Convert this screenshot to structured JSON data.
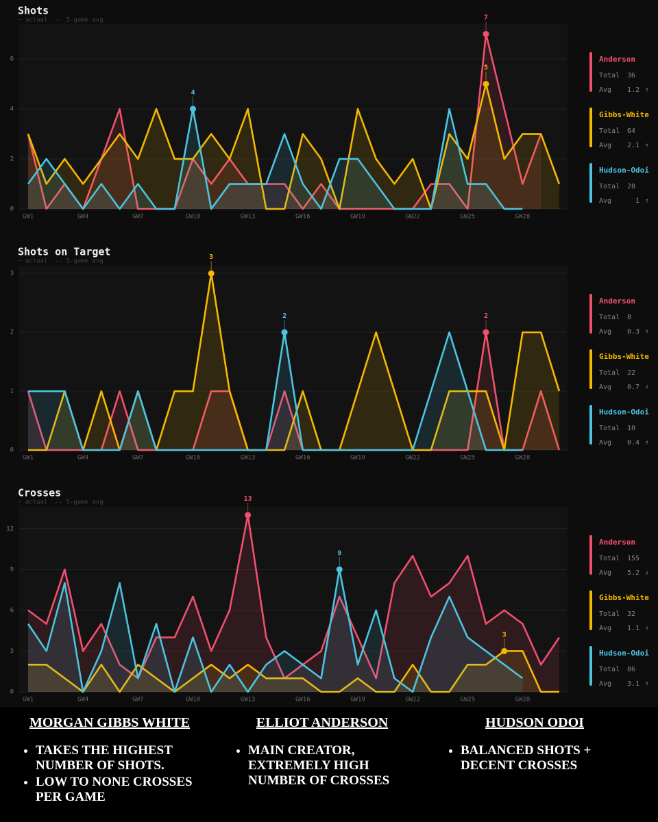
{
  "chart_data": [
    {
      "type": "line",
      "title": "Shots",
      "legend_note": "— actual  -- 5-game avg",
      "total_label": "Total",
      "avg_label": "Avg",
      "categories": [
        "GW1",
        null,
        null,
        "GW4",
        null,
        null,
        "GW7",
        null,
        null,
        "GW10",
        null,
        null,
        "GW13",
        null,
        null,
        "GW16",
        null,
        null,
        "GW19",
        null,
        null,
        "GW22",
        null,
        null,
        "GW25",
        null,
        null,
        "GW28",
        null,
        null
      ],
      "ylim": [
        0,
        7.4
      ],
      "yticks": [
        0,
        2,
        4,
        6
      ],
      "grid": true,
      "series": [
        {
          "name": "Anderson",
          "color": "#f0506e",
          "total": 36,
          "avg": 1.2,
          "trend": "↑",
          "values": [
            3,
            0,
            1,
            0,
            2,
            4,
            0,
            0,
            0,
            2,
            1,
            2,
            1,
            1,
            1,
            0,
            1,
            0,
            0,
            0,
            0,
            0,
            1,
            1,
            0,
            7,
            4,
            1,
            3,
            null
          ]
        },
        {
          "name": "Gibbs-White",
          "color": "#f5b800",
          "total": 64,
          "avg": 2.1,
          "trend": "↑",
          "values": [
            3,
            1,
            2,
            1,
            2,
            3,
            2,
            4,
            2,
            2,
            3,
            2,
            4,
            0,
            0,
            3,
            2,
            0,
            4,
            2,
            1,
            2,
            0,
            3,
            2,
            5,
            2,
            3,
            3,
            1
          ]
        },
        {
          "name": "Hudson-Odoi",
          "color": "#4cc3e0",
          "total": 28,
          "avg": 1.0,
          "trend": "↑",
          "values": [
            1,
            2,
            1,
            0,
            1,
            0,
            1,
            0,
            0,
            4,
            0,
            1,
            1,
            1,
            3,
            1,
            0,
            2,
            2,
            1,
            0,
            0,
            0,
            4,
            1,
            1,
            0,
            0,
            null,
            null
          ]
        }
      ]
    },
    {
      "type": "line",
      "title": "Shots on Target",
      "legend_note": "— actual  -- 5-game avg",
      "total_label": "Total",
      "avg_label": "Avg",
      "categories": [
        "GW1",
        null,
        null,
        "GW4",
        null,
        null,
        "GW7",
        null,
        null,
        "GW10",
        null,
        null,
        "GW13",
        null,
        null,
        "GW16",
        null,
        null,
        "GW19",
        null,
        null,
        "GW22",
        null,
        null,
        "GW25",
        null,
        null,
        "GW28",
        null,
        null
      ],
      "ylim": [
        0,
        3.13
      ],
      "yticks": [
        0,
        1,
        2,
        3
      ],
      "grid": true,
      "series": [
        {
          "name": "Anderson",
          "color": "#f0506e",
          "total": 8,
          "avg": 0.3,
          "trend": "↑",
          "values": [
            1,
            0,
            0,
            0,
            0,
            1,
            0,
            0,
            0,
            0,
            1,
            1,
            0,
            0,
            1,
            0,
            0,
            0,
            0,
            0,
            0,
            0,
            0,
            0,
            0,
            2,
            0,
            0,
            1,
            0
          ]
        },
        {
          "name": "Gibbs-White",
          "color": "#f5b800",
          "total": 22,
          "avg": 0.7,
          "trend": "↑",
          "values": [
            0,
            0,
            1,
            0,
            1,
            0,
            1,
            0,
            1,
            1,
            3,
            1,
            0,
            0,
            0,
            1,
            0,
            0,
            1,
            2,
            1,
            0,
            0,
            1,
            1,
            1,
            0,
            2,
            2,
            1
          ]
        },
        {
          "name": "Hudson-Odoi",
          "color": "#4cc3e0",
          "total": 10,
          "avg": 0.4,
          "trend": "↑",
          "values": [
            1,
            1,
            1,
            0,
            0,
            0,
            1,
            0,
            0,
            0,
            0,
            0,
            0,
            0,
            2,
            0,
            0,
            0,
            0,
            0,
            0,
            0,
            1,
            2,
            1,
            0,
            0,
            0,
            null,
            null
          ]
        }
      ]
    },
    {
      "type": "line",
      "title": "Crosses",
      "legend_note": "— actual  -- 5-game avg",
      "total_label": "Total",
      "avg_label": "Avg",
      "categories": [
        "GW1",
        null,
        null,
        "GW4",
        null,
        null,
        "GW7",
        null,
        null,
        "GW10",
        null,
        null,
        "GW13",
        null,
        null,
        "GW16",
        null,
        null,
        "GW19",
        null,
        null,
        "GW22",
        null,
        null,
        "GW25",
        null,
        null,
        "GW28",
        null,
        null
      ],
      "ylim": [
        0,
        13.6
      ],
      "yticks": [
        0,
        3,
        6,
        9,
        12
      ],
      "grid": true,
      "series": [
        {
          "name": "Anderson",
          "color": "#f0506e",
          "total": 155,
          "avg": 5.2,
          "trend": "↓",
          "values": [
            6,
            5,
            9,
            3,
            5,
            2,
            1,
            4,
            4,
            7,
            3,
            6,
            13,
            4,
            1,
            2,
            3,
            7,
            4,
            1,
            8,
            10,
            7,
            8,
            10,
            5,
            6,
            5,
            2,
            4
          ]
        },
        {
          "name": "Gibbs-White",
          "color": "#f5b800",
          "total": 32,
          "avg": 1.1,
          "trend": "↑",
          "values": [
            2,
            2,
            1,
            0,
            2,
            0,
            2,
            1,
            0,
            1,
            2,
            1,
            2,
            1,
            1,
            1,
            0,
            0,
            1,
            0,
            0,
            2,
            0,
            0,
            2,
            2,
            3,
            3,
            0,
            0
          ]
        },
        {
          "name": "Hudson-Odoi",
          "color": "#4cc3e0",
          "total": 86,
          "avg": 3.1,
          "trend": "↑",
          "values": [
            5,
            3,
            8,
            0,
            3,
            8,
            1,
            5,
            0,
            4,
            0,
            2,
            0,
            2,
            3,
            2,
            1,
            9,
            2,
            6,
            1,
            0,
            4,
            7,
            4,
            3,
            2,
            1,
            null,
            null
          ]
        }
      ]
    }
  ],
  "notes": [
    {
      "heading": "MORGAN GIBBS WHITE",
      "bullets": [
        "TAKES THE HIGHEST NUMBER OF SHOTS.",
        "LOW TO NONE CROSSES PER GAME"
      ]
    },
    {
      "heading": "ELLIOT ANDERSON",
      "bullets": [
        "MAIN CREATOR, EXTREMELY HIGH NUMBER OF CROSSES"
      ]
    },
    {
      "heading": "HUDSON ODOI",
      "bullets": [
        "BALANCED SHOTS + DECENT CROSSES"
      ]
    }
  ]
}
